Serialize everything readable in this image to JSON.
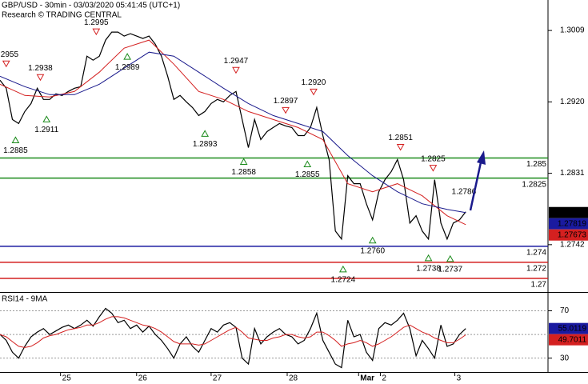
{
  "chart_data": [
    {
      "type": "line",
      "title": "GBP/USD - 30min - 03/03/2020 05:41:45 (UTC+1)",
      "subtitle": "Research © TRADING CENTRAL",
      "xlim": [
        0,
        353
      ],
      "ylim": [
        1.2683,
        1.3047
      ],
      "yticks": [
        1.3009,
        {
          "value": 1.292,
          "label": "1.2920"
        },
        1.2831,
        1.2742
      ],
      "series": [
        {
          "color": "#000000",
          "x": [
            0,
            4,
            8,
            12,
            16,
            20,
            24,
            28,
            32,
            36,
            40,
            44,
            48,
            52,
            56,
            60,
            64,
            68,
            72,
            76,
            80,
            84,
            88,
            92,
            96,
            100,
            104,
            108,
            112,
            116,
            120,
            124,
            128,
            132,
            136,
            140,
            144,
            148,
            152,
            156,
            160,
            164,
            168,
            172,
            176,
            180,
            184,
            188,
            192,
            196,
            200,
            204,
            208,
            212,
            216,
            220,
            224,
            228,
            232,
            236,
            240,
            244,
            248,
            252,
            256,
            260,
            264,
            268,
            272,
            276,
            280,
            284,
            288,
            292,
            296,
            300
          ],
          "values": [
            1.2947,
            1.2937,
            1.2898,
            1.2893,
            1.2908,
            1.2918,
            1.2937,
            1.2923,
            1.2923,
            1.293,
            1.2928,
            1.2933,
            1.2937,
            1.2939,
            1.2977,
            1.2972,
            1.2977,
            1.2997,
            1.3007,
            1.3007,
            1.3002,
            1.3005,
            1.3002,
            1.2999,
            1.3002,
            1.2992,
            1.2977,
            1.2952,
            1.2923,
            1.2928,
            1.292,
            1.2913,
            1.2903,
            1.2908,
            1.2918,
            1.2923,
            1.292,
            1.2928,
            1.2933,
            1.2898,
            1.2863,
            1.2898,
            1.2873,
            1.2883,
            1.2888,
            1.2893,
            1.289,
            1.2888,
            1.2878,
            1.2878,
            1.2888,
            1.2913,
            1.2878,
            1.2848,
            1.2759,
            1.2749,
            1.2828,
            1.2818,
            1.2818,
            1.2793,
            1.2773,
            1.2808,
            1.2823,
            1.2833,
            1.2848,
            1.2823,
            1.2769,
            1.2778,
            1.2759,
            1.2749,
            1.2823,
            1.2769,
            1.2749,
            1.2769,
            1.2773,
            1.2783
          ]
        },
        {
          "color": "#d42020",
          "x": [
            0,
            16,
            32,
            48,
            64,
            80,
            96,
            112,
            128,
            144,
            160,
            176,
            192,
            208,
            224,
            240,
            256,
            272,
            288,
            300
          ],
          "values": [
            1.2942,
            1.2928,
            1.2926,
            1.2933,
            1.2957,
            1.2987,
            1.2997,
            1.2967,
            1.2933,
            1.2923,
            1.2908,
            1.2898,
            1.2888,
            1.2873,
            1.2818,
            1.2808,
            1.2818,
            1.2803,
            1.2778,
            1.2767
          ]
        },
        {
          "color": "#1a1a8c",
          "x": [
            0,
            16,
            32,
            48,
            64,
            80,
            96,
            112,
            128,
            144,
            160,
            176,
            192,
            208,
            224,
            240,
            256,
            272,
            288,
            300
          ],
          "values": [
            1.2952,
            1.2939,
            1.2929,
            1.2929,
            1.2942,
            1.2962,
            1.2982,
            1.2977,
            1.2957,
            1.2937,
            1.2918,
            1.2903,
            1.2893,
            1.2883,
            1.2853,
            1.2828,
            1.2808,
            1.2793,
            1.2786,
            1.2782
          ]
        }
      ],
      "levels": [
        {
          "value": 1.285,
          "color": "#1a8a1a"
        },
        {
          "value": 1.2825,
          "color": "#1a8a1a"
        },
        {
          "value": 1.274,
          "color": "#1a1aa0"
        },
        {
          "value": 1.272,
          "color": "#d42020"
        },
        {
          "value": 1.27,
          "color": "#d42020"
        }
      ],
      "price_tags": [
        {
          "value": 1.2782,
          "color": "#000000"
        },
        {
          "value": 1.27819,
          "color": "#1a1aa0"
        },
        {
          "value": 1.27673,
          "color": "#d42020"
        }
      ],
      "annotations": [
        {
          "label": "1.2955",
          "value": 1.2955,
          "x": 4,
          "kind": "high"
        },
        {
          "label": "1.2938",
          "value": 1.2938,
          "x": 26,
          "kind": "high"
        },
        {
          "label": "1.2911",
          "value": 1.2911,
          "x": 30,
          "kind": "low"
        },
        {
          "label": "1.2885",
          "value": 1.2885,
          "x": 10,
          "kind": "low"
        },
        {
          "label": "1.2995",
          "value": 1.2995,
          "x": 62,
          "kind": "high"
        },
        {
          "label": "1.2989",
          "value": 1.2989,
          "x": 82,
          "kind": "low"
        },
        {
          "label": "1.2947",
          "value": 1.2947,
          "x": 152,
          "kind": "high"
        },
        {
          "label": "1.2893",
          "value": 1.2893,
          "x": 132,
          "kind": "low"
        },
        {
          "label": "1.2858",
          "value": 1.2858,
          "x": 157,
          "kind": "low"
        },
        {
          "label": "1.2920",
          "value": 1.292,
          "x": 202,
          "kind": "high"
        },
        {
          "label": "1.2897",
          "value": 1.2897,
          "x": 184,
          "kind": "high"
        },
        {
          "label": "1.2855",
          "value": 1.2855,
          "x": 198,
          "kind": "low"
        },
        {
          "label": "1.2851",
          "value": 1.2851,
          "x": 258,
          "kind": "high"
        },
        {
          "label": "1.2825",
          "value": 1.2825,
          "x": 279,
          "kind": "high"
        },
        {
          "label": "1.2760",
          "value": 1.276,
          "x": 240,
          "kind": "low"
        },
        {
          "label": "1.2724",
          "value": 1.2724,
          "x": 221,
          "kind": "low"
        },
        {
          "label": "1.2738",
          "value": 1.2738,
          "x": 276,
          "kind": "low"
        },
        {
          "label": "1.2737",
          "value": 1.2737,
          "x": 290,
          "kind": "low"
        },
        {
          "label": "1.2786",
          "value": 1.2786,
          "x": 305,
          "kind": "target"
        }
      ]
    },
    {
      "type": "line",
      "title": "RSI14 - 9MA",
      "xlim": [
        0,
        353
      ],
      "xticks": [
        {
          "value": 39,
          "label": "25"
        },
        {
          "value": 88,
          "label": "26"
        },
        {
          "value": 136,
          "label": "27"
        },
        {
          "value": 185,
          "label": "28"
        },
        {
          "value": 231,
          "label": "Mar"
        },
        {
          "value": 245,
          "label": "2"
        },
        {
          "value": 293,
          "label": "3"
        }
      ],
      "ylim": [
        18.3,
        85.2
      ],
      "yticks": [
        70,
        30
      ],
      "levels": [
        {
          "value": 50,
          "color": "#999999"
        }
      ],
      "series": [
        {
          "color": "#000000",
          "x": [
            0,
            4,
            8,
            12,
            16,
            20,
            24,
            28,
            32,
            36,
            40,
            44,
            48,
            52,
            56,
            60,
            64,
            68,
            72,
            76,
            80,
            84,
            88,
            92,
            96,
            100,
            104,
            108,
            112,
            116,
            120,
            124,
            128,
            132,
            136,
            140,
            144,
            148,
            152,
            156,
            160,
            164,
            168,
            172,
            176,
            180,
            184,
            188,
            192,
            196,
            200,
            204,
            208,
            212,
            216,
            220,
            224,
            228,
            232,
            236,
            240,
            244,
            248,
            252,
            256,
            260,
            264,
            268,
            272,
            276,
            280,
            284,
            288,
            292,
            296,
            300
          ],
          "values": [
            50,
            45,
            35,
            30,
            40,
            48,
            52,
            55,
            50,
            53,
            56,
            58,
            55,
            58,
            62,
            57,
            65,
            72,
            68,
            60,
            62,
            55,
            58,
            52,
            57,
            50,
            45,
            38,
            30,
            42,
            48,
            40,
            35,
            45,
            55,
            52,
            58,
            60,
            56,
            30,
            25,
            55,
            42,
            48,
            52,
            55,
            50,
            48,
            42,
            45,
            55,
            68,
            45,
            35,
            25,
            22,
            62,
            48,
            50,
            35,
            28,
            55,
            60,
            58,
            62,
            68,
            55,
            32,
            45,
            38,
            30,
            58,
            40,
            42,
            50,
            55
          ]
        },
        {
          "color": "#d42020",
          "x": [
            0,
            4,
            8,
            12,
            16,
            20,
            24,
            28,
            32,
            36,
            40,
            44,
            48,
            52,
            56,
            60,
            64,
            68,
            72,
            76,
            80,
            84,
            88,
            92,
            96,
            100,
            104,
            108,
            112,
            116,
            120,
            124,
            128,
            132,
            136,
            140,
            144,
            148,
            152,
            156,
            160,
            164,
            168,
            172,
            176,
            180,
            184,
            188,
            192,
            196,
            200,
            204,
            208,
            212,
            216,
            220,
            224,
            228,
            232,
            236,
            240,
            244,
            248,
            252,
            256,
            260,
            264,
            268,
            272,
            276,
            280,
            284,
            288,
            292,
            296,
            300
          ],
          "values": [
            50,
            48,
            44,
            40,
            39,
            40,
            43,
            47,
            49,
            50,
            52,
            54,
            55,
            56,
            58,
            58,
            60,
            63,
            65,
            65,
            64,
            62,
            60,
            58,
            57,
            55,
            52,
            48,
            44,
            42,
            42,
            42,
            41,
            42,
            45,
            48,
            51,
            54,
            56,
            52,
            47,
            46,
            45,
            45,
            47,
            48,
            50,
            50,
            48,
            47,
            48,
            52,
            52,
            49,
            45,
            40,
            42,
            43,
            45,
            43,
            40,
            42,
            45,
            48,
            52,
            56,
            58,
            55,
            52,
            50,
            47,
            45,
            43,
            43,
            46,
            49.7
          ]
        }
      ],
      "price_tags": [
        {
          "value": 55.0119,
          "color": "#1a1aa0"
        },
        {
          "value": 49.7011,
          "color": "#d42020"
        }
      ]
    }
  ]
}
